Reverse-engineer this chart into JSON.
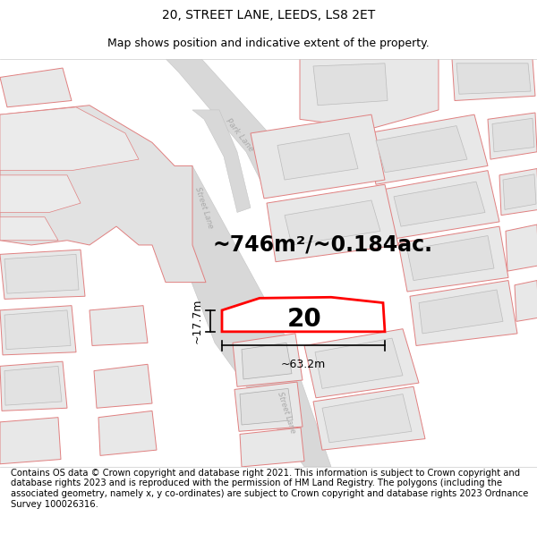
{
  "title": "20, STREET LANE, LEEDS, LS8 2ET",
  "subtitle": "Map shows position and indicative extent of the property.",
  "footer": "Contains OS data © Crown copyright and database right 2021. This information is subject to Crown copyright and database rights 2023 and is reproduced with the permission of HM Land Registry. The polygons (including the associated geometry, namely x, y co-ordinates) are subject to Crown copyright and database rights 2023 Ordnance Survey 100026316.",
  "area_text": "~746m²/~0.184ac.",
  "width_label": "~63.2m",
  "height_label": "~17.7m",
  "number_label": "20",
  "highlight_color": "#ff0000",
  "pink_outline": "#e08080",
  "title_fontsize": 10,
  "subtitle_fontsize": 9,
  "footer_fontsize": 7.2,
  "area_fontsize": 17,
  "label_fontsize": 9,
  "number_fontsize": 20
}
